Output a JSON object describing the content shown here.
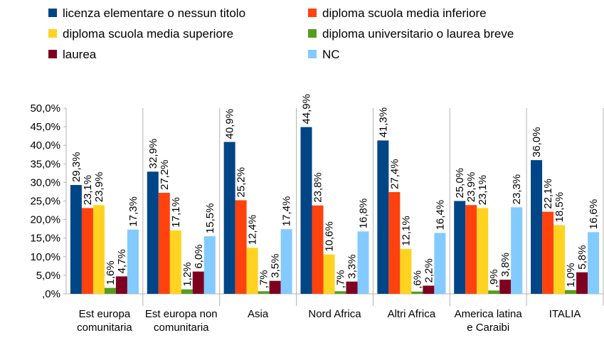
{
  "chart_data": {
    "type": "bar",
    "categories": [
      "Est europa comunitaria",
      "Est europa non comunitaria",
      "Asia",
      "Nord Africa",
      "Altri Africa",
      "America latina e Caraibi",
      "ITALIA"
    ],
    "series": [
      {
        "name": "licenza elementare o nessun titolo",
        "color": "#004586",
        "values": [
          29.3,
          32.9,
          40.9,
          44.9,
          41.3,
          25.0,
          36.0
        ],
        "value_labels": [
          "29,3%",
          "32,9%",
          "40,9%",
          "44,9%",
          "41,3%",
          "25,0%",
          "36,0%"
        ]
      },
      {
        "name": "diploma scuola media inferiore",
        "color": "#ff420e",
        "values": [
          23.1,
          27.2,
          25.2,
          23.8,
          27.4,
          23.9,
          22.1
        ],
        "value_labels": [
          "23,1%",
          "27,2%",
          "25,2%",
          "23,8%",
          "27,4%",
          "23,9%",
          "22,1%"
        ]
      },
      {
        "name": "diploma scuola media superiore",
        "color": "#ffd320",
        "values": [
          23.9,
          17.1,
          12.4,
          10.6,
          12.1,
          23.1,
          18.5
        ],
        "value_labels": [
          "23,9%",
          "17,1%",
          "12,4%",
          "10,6%",
          "12,1%",
          "23,1%",
          "18,5%"
        ]
      },
      {
        "name": "diploma universitario o laurea breve",
        "color": "#579d1c",
        "values": [
          1.6,
          1.2,
          0.7,
          0.7,
          0.6,
          0.9,
          1.0
        ],
        "value_labels": [
          "1,6%",
          "1,2%",
          ",7%",
          ",7%",
          ",6%",
          ",9%",
          "1,0%"
        ]
      },
      {
        "name": "laurea",
        "color": "#7e0021",
        "values": [
          4.7,
          6.0,
          3.5,
          3.3,
          2.2,
          3.8,
          5.8
        ],
        "value_labels": [
          "4,7%",
          "6,0%",
          "3,5%",
          "3,3%",
          "2,2%",
          "3,8%",
          "5,8%"
        ]
      },
      {
        "name": "NC",
        "color": "#83caff",
        "values": [
          17.3,
          15.5,
          17.4,
          16.8,
          16.4,
          23.3,
          16.6
        ],
        "value_labels": [
          "17,3%",
          "15,5%",
          "17,4%",
          "16,8%",
          "16,4%",
          "23,3%",
          "16,6%"
        ]
      }
    ],
    "ylim": [
      0,
      50
    ],
    "yticks": [
      {
        "value": 0,
        "label": ",0%"
      },
      {
        "value": 5,
        "label": "5,0%"
      },
      {
        "value": 10,
        "label": "10,0%"
      },
      {
        "value": 15,
        "label": "15,0%"
      },
      {
        "value": 20,
        "label": "20,0%"
      },
      {
        "value": 25,
        "label": "25,0%"
      },
      {
        "value": 30,
        "label": "30,0%"
      },
      {
        "value": 35,
        "label": "35,0%"
      },
      {
        "value": 40,
        "label": "40,0%"
      },
      {
        "value": 45,
        "label": "45,0%"
      },
      {
        "value": 50,
        "label": "50,0%"
      }
    ],
    "legend": "top"
  }
}
